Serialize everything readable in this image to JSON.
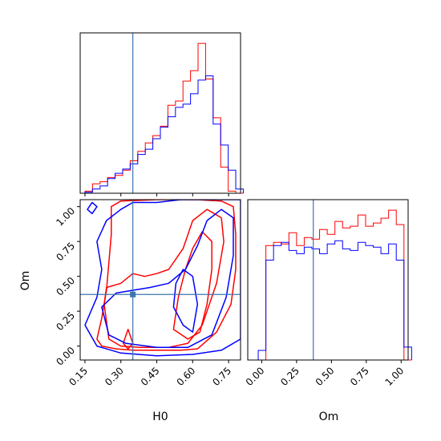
{
  "colors": {
    "red": "#ff0000",
    "blue": "#0000ff",
    "truth": "#3b75af"
  },
  "chart_data": {
    "type": "corner",
    "params": [
      "H0",
      "Om"
    ],
    "truth": {
      "H0": 0.35,
      "Om": 0.37
    },
    "ranges": {
      "H0": [
        0.13,
        0.8
      ],
      "Om": [
        -0.1,
        1.05
      ]
    },
    "ticks": {
      "H0": [
        "0.15",
        "0.30",
        "0.45",
        "0.60",
        "0.75"
      ],
      "Om": [
        "0.00",
        "0.25",
        "0.50",
        "0.75",
        "1.00"
      ]
    },
    "hist_H0": {
      "edges": [
        0.15,
        0.1815,
        0.213,
        0.2445,
        0.276,
        0.3075,
        0.339,
        0.3705,
        0.402,
        0.4335,
        0.465,
        0.4965,
        0.528,
        0.5595,
        0.591,
        0.6225,
        0.654,
        0.6855,
        0.717,
        0.7485,
        0.78,
        0.8115
      ],
      "series": [
        {
          "color": "red",
          "values": [
            2,
            9,
            11,
            15,
            17,
            22,
            31,
            40,
            48,
            55,
            64,
            84,
            88,
            107,
            117,
            143,
            109,
            72,
            25,
            2,
            0
          ]
        },
        {
          "color": "blue",
          "values": [
            1,
            4,
            7,
            14,
            19,
            23,
            28,
            37,
            42,
            52,
            63,
            73,
            82,
            85,
            95,
            108,
            112,
            66,
            46,
            22,
            4
          ]
        }
      ]
    },
    "hist_Om": {
      "edges": [
        -0.08,
        -0.025,
        0.03,
        0.085,
        0.14,
        0.195,
        0.25,
        0.305,
        0.36,
        0.415,
        0.47,
        0.525,
        0.58,
        0.635,
        0.69,
        0.745,
        0.8,
        0.855,
        0.91,
        0.965,
        1.02,
        1.075
      ],
      "series": [
        {
          "color": "red",
          "values": [
            0,
            0,
            71,
            73,
            72,
            79,
            71,
            76,
            75,
            81,
            78,
            86,
            82,
            83,
            90,
            83,
            85,
            88,
            93,
            84,
            0
          ]
        },
        {
          "color": "blue",
          "values": [
            0,
            6,
            62,
            71,
            73,
            68,
            66,
            70,
            69,
            66,
            72,
            74,
            69,
            68,
            73,
            71,
            70,
            66,
            72,
            62,
            8
          ]
        }
      ]
    },
    "contours": [
      {
        "color": "red",
        "points": [
          [
            0.2,
            0.05
          ],
          [
            0.22,
            0.0
          ],
          [
            0.28,
            -0.02
          ],
          [
            0.35,
            -0.03
          ],
          [
            0.45,
            -0.03
          ],
          [
            0.55,
            -0.03
          ],
          [
            0.62,
            -0.02
          ],
          [
            0.7,
            0.1
          ],
          [
            0.76,
            0.3
          ],
          [
            0.78,
            0.55
          ],
          [
            0.78,
            0.8
          ],
          [
            0.77,
            1.0
          ],
          [
            0.72,
            1.04
          ],
          [
            0.62,
            1.05
          ],
          [
            0.45,
            1.05
          ],
          [
            0.3,
            1.04
          ],
          [
            0.26,
            1.0
          ],
          [
            0.26,
            0.8
          ],
          [
            0.25,
            0.6
          ],
          [
            0.24,
            0.4
          ],
          [
            0.22,
            0.2
          ]
        ]
      },
      {
        "color": "red",
        "points": [
          [
            0.23,
            0.3
          ],
          [
            0.25,
            0.05
          ],
          [
            0.3,
            0.0
          ],
          [
            0.38,
            -0.01
          ],
          [
            0.5,
            -0.01
          ],
          [
            0.58,
            0.02
          ],
          [
            0.64,
            0.15
          ],
          [
            0.7,
            0.45
          ],
          [
            0.73,
            0.75
          ],
          [
            0.72,
            0.92
          ],
          [
            0.66,
            0.98
          ],
          [
            0.6,
            0.9
          ],
          [
            0.56,
            0.7
          ],
          [
            0.5,
            0.55
          ],
          [
            0.45,
            0.52
          ],
          [
            0.4,
            0.5
          ],
          [
            0.35,
            0.52
          ],
          [
            0.3,
            0.45
          ],
          [
            0.24,
            0.42
          ]
        ]
      },
      {
        "color": "red",
        "points": [
          [
            0.52,
            0.12
          ],
          [
            0.58,
            0.05
          ],
          [
            0.63,
            0.1
          ],
          [
            0.66,
            0.3
          ],
          [
            0.68,
            0.55
          ],
          [
            0.68,
            0.75
          ],
          [
            0.64,
            0.82
          ],
          [
            0.6,
            0.7
          ],
          [
            0.57,
            0.55
          ],
          [
            0.54,
            0.35
          ]
        ]
      },
      {
        "color": "red",
        "points": [
          [
            0.31,
            0.02
          ],
          [
            0.33,
            -0.02
          ],
          [
            0.35,
            0.02
          ],
          [
            0.33,
            0.12
          ]
        ]
      },
      {
        "color": "blue",
        "points": [
          [
            0.15,
            0.15
          ],
          [
            0.2,
            0.0
          ],
          [
            0.3,
            -0.05
          ],
          [
            0.45,
            -0.07
          ],
          [
            0.6,
            -0.06
          ],
          [
            0.72,
            -0.03
          ],
          [
            0.8,
            0.05
          ],
          [
            0.8,
            1.05
          ],
          [
            0.7,
            1.05
          ],
          [
            0.55,
            1.05
          ],
          [
            0.45,
            1.03
          ],
          [
            0.35,
            1.03
          ],
          [
            0.3,
            0.98
          ],
          [
            0.24,
            0.9
          ],
          [
            0.2,
            0.75
          ],
          [
            0.22,
            0.55
          ],
          [
            0.2,
            0.35
          ]
        ]
      },
      {
        "color": "blue",
        "points": [
          [
            0.22,
            0.28
          ],
          [
            0.25,
            0.08
          ],
          [
            0.32,
            0.02
          ],
          [
            0.45,
            -0.01
          ],
          [
            0.58,
            -0.01
          ],
          [
            0.68,
            0.08
          ],
          [
            0.74,
            0.35
          ],
          [
            0.77,
            0.65
          ],
          [
            0.77,
            0.92
          ],
          [
            0.72,
            0.98
          ],
          [
            0.66,
            0.9
          ],
          [
            0.62,
            0.72
          ],
          [
            0.57,
            0.55
          ],
          [
            0.5,
            0.45
          ],
          [
            0.42,
            0.42
          ],
          [
            0.35,
            0.4
          ],
          [
            0.28,
            0.38
          ]
        ]
      },
      {
        "color": "blue",
        "points": [
          [
            0.52,
            0.28
          ],
          [
            0.56,
            0.15
          ],
          [
            0.6,
            0.1
          ],
          [
            0.62,
            0.3
          ],
          [
            0.6,
            0.5
          ],
          [
            0.56,
            0.55
          ],
          [
            0.53,
            0.45
          ]
        ]
      },
      {
        "color": "blue",
        "points": [
          [
            0.16,
            0.98
          ],
          [
            0.18,
            0.95
          ],
          [
            0.2,
            1.0
          ],
          [
            0.18,
            1.03
          ]
        ]
      }
    ]
  }
}
